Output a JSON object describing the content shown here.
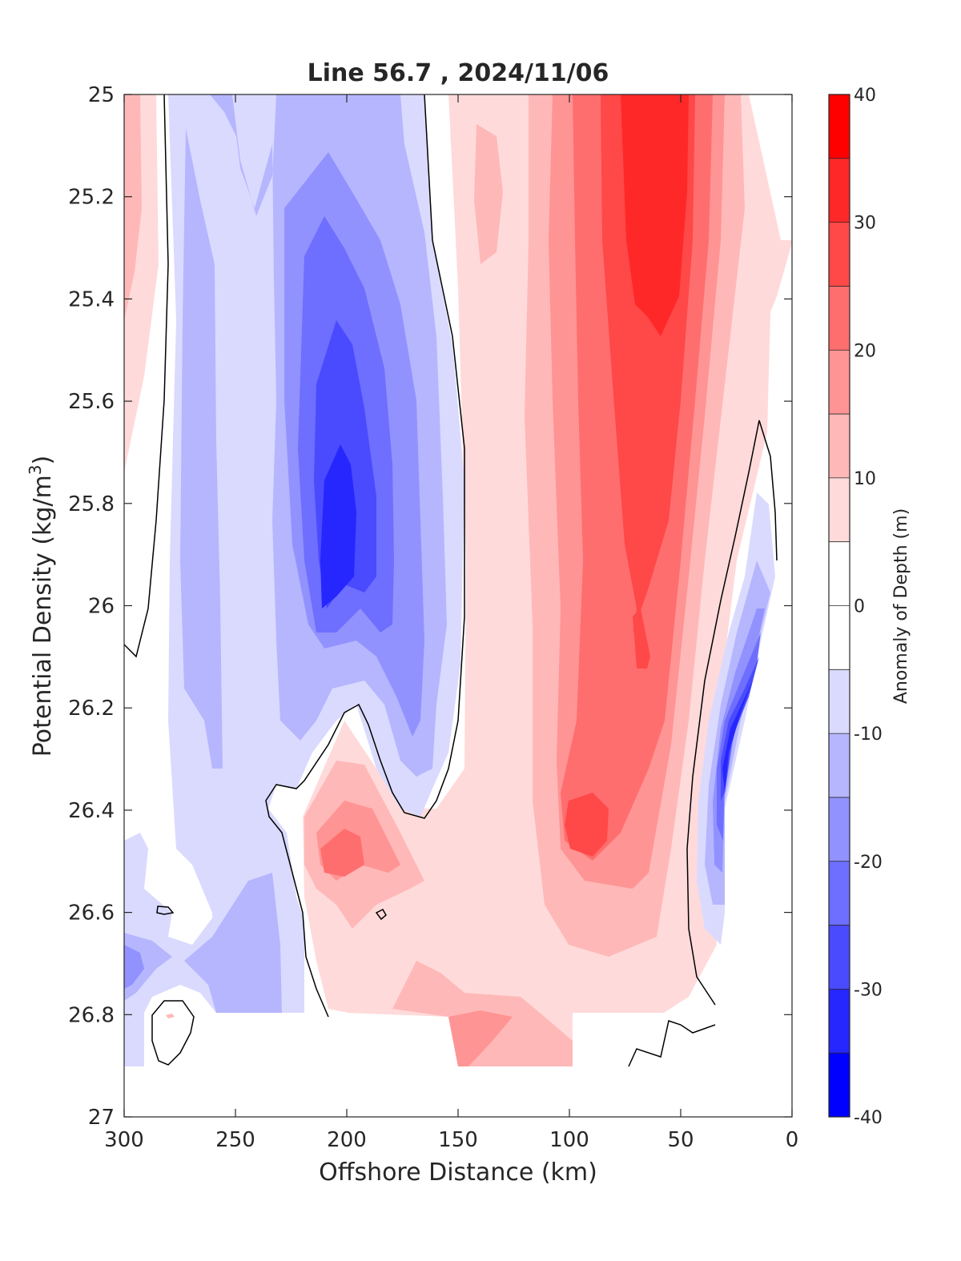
{
  "chart_data": {
    "type": "heatmap",
    "subtype": "filled-contour",
    "title": "Line 56.7 , 2024/11/06",
    "xlabel": "Offshore Distance (km)",
    "ylabel": "Potential Density (kg/m",
    "ylabel_sup": "3",
    "ylabel_close": ")",
    "colorbar_label": "Anomaly of Depth (m)",
    "xlim": [
      300,
      0
    ],
    "ylim": [
      27,
      25
    ],
    "x_ticks": [
      300,
      250,
      200,
      150,
      100,
      50,
      0
    ],
    "y_ticks": [
      "25",
      "25.2",
      "25.4",
      "25.6",
      "25.8",
      "26",
      "26.2",
      "26.4",
      "26.6",
      "26.8",
      "27"
    ],
    "colorbar_ticks": [
      40,
      30,
      20,
      10,
      0,
      -10,
      -20,
      -30,
      -40
    ],
    "colorbar_levels": [
      {
        "range": [
          35,
          40
        ],
        "color": "#ff0000"
      },
      {
        "range": [
          30,
          35
        ],
        "color": "#ff2828"
      },
      {
        "range": [
          25,
          30
        ],
        "color": "#ff4848"
      },
      {
        "range": [
          20,
          25
        ],
        "color": "#ff6e6e"
      },
      {
        "range": [
          15,
          20
        ],
        "color": "#ff9494"
      },
      {
        "range": [
          10,
          15
        ],
        "color": "#ffb8b8"
      },
      {
        "range": [
          5,
          10
        ],
        "color": "#ffdada"
      },
      {
        "range": [
          -5,
          5
        ],
        "color": "#ffffff"
      },
      {
        "range": [
          -10,
          -5
        ],
        "color": "#dadaff"
      },
      {
        "range": [
          -15,
          -10
        ],
        "color": "#b6b6ff"
      },
      {
        "range": [
          -20,
          -15
        ],
        "color": "#9292ff"
      },
      {
        "range": [
          -25,
          -20
        ],
        "color": "#6e6eff"
      },
      {
        "range": [
          -30,
          -25
        ],
        "color": "#4a4aff"
      },
      {
        "range": [
          -35,
          -30
        ],
        "color": "#2626ff"
      },
      {
        "range": [
          -40,
          -35
        ],
        "color": "#0000ff"
      }
    ],
    "features": [
      {
        "kind": "low",
        "x": 205,
        "y": 25.85,
        "value": -27
      },
      {
        "kind": "high",
        "x": 65,
        "y": 25.2,
        "value": 38
      },
      {
        "kind": "high",
        "x": 92,
        "y": 26.42,
        "value": 28
      },
      {
        "kind": "low",
        "x": 27,
        "y": 26.3,
        "value": -33
      },
      {
        "kind": "high",
        "x": 200,
        "y": 26.48,
        "value": 20
      },
      {
        "kind": "high",
        "x": 295,
        "y": 25.25,
        "value": 12
      },
      {
        "kind": "low",
        "x": 248,
        "y": 26.7,
        "value": -13
      }
    ],
    "data_extent": {
      "y_max_full": 26.8,
      "y_max_partial": 26.9
    },
    "grid": false,
    "legend": "colorbar-right"
  }
}
